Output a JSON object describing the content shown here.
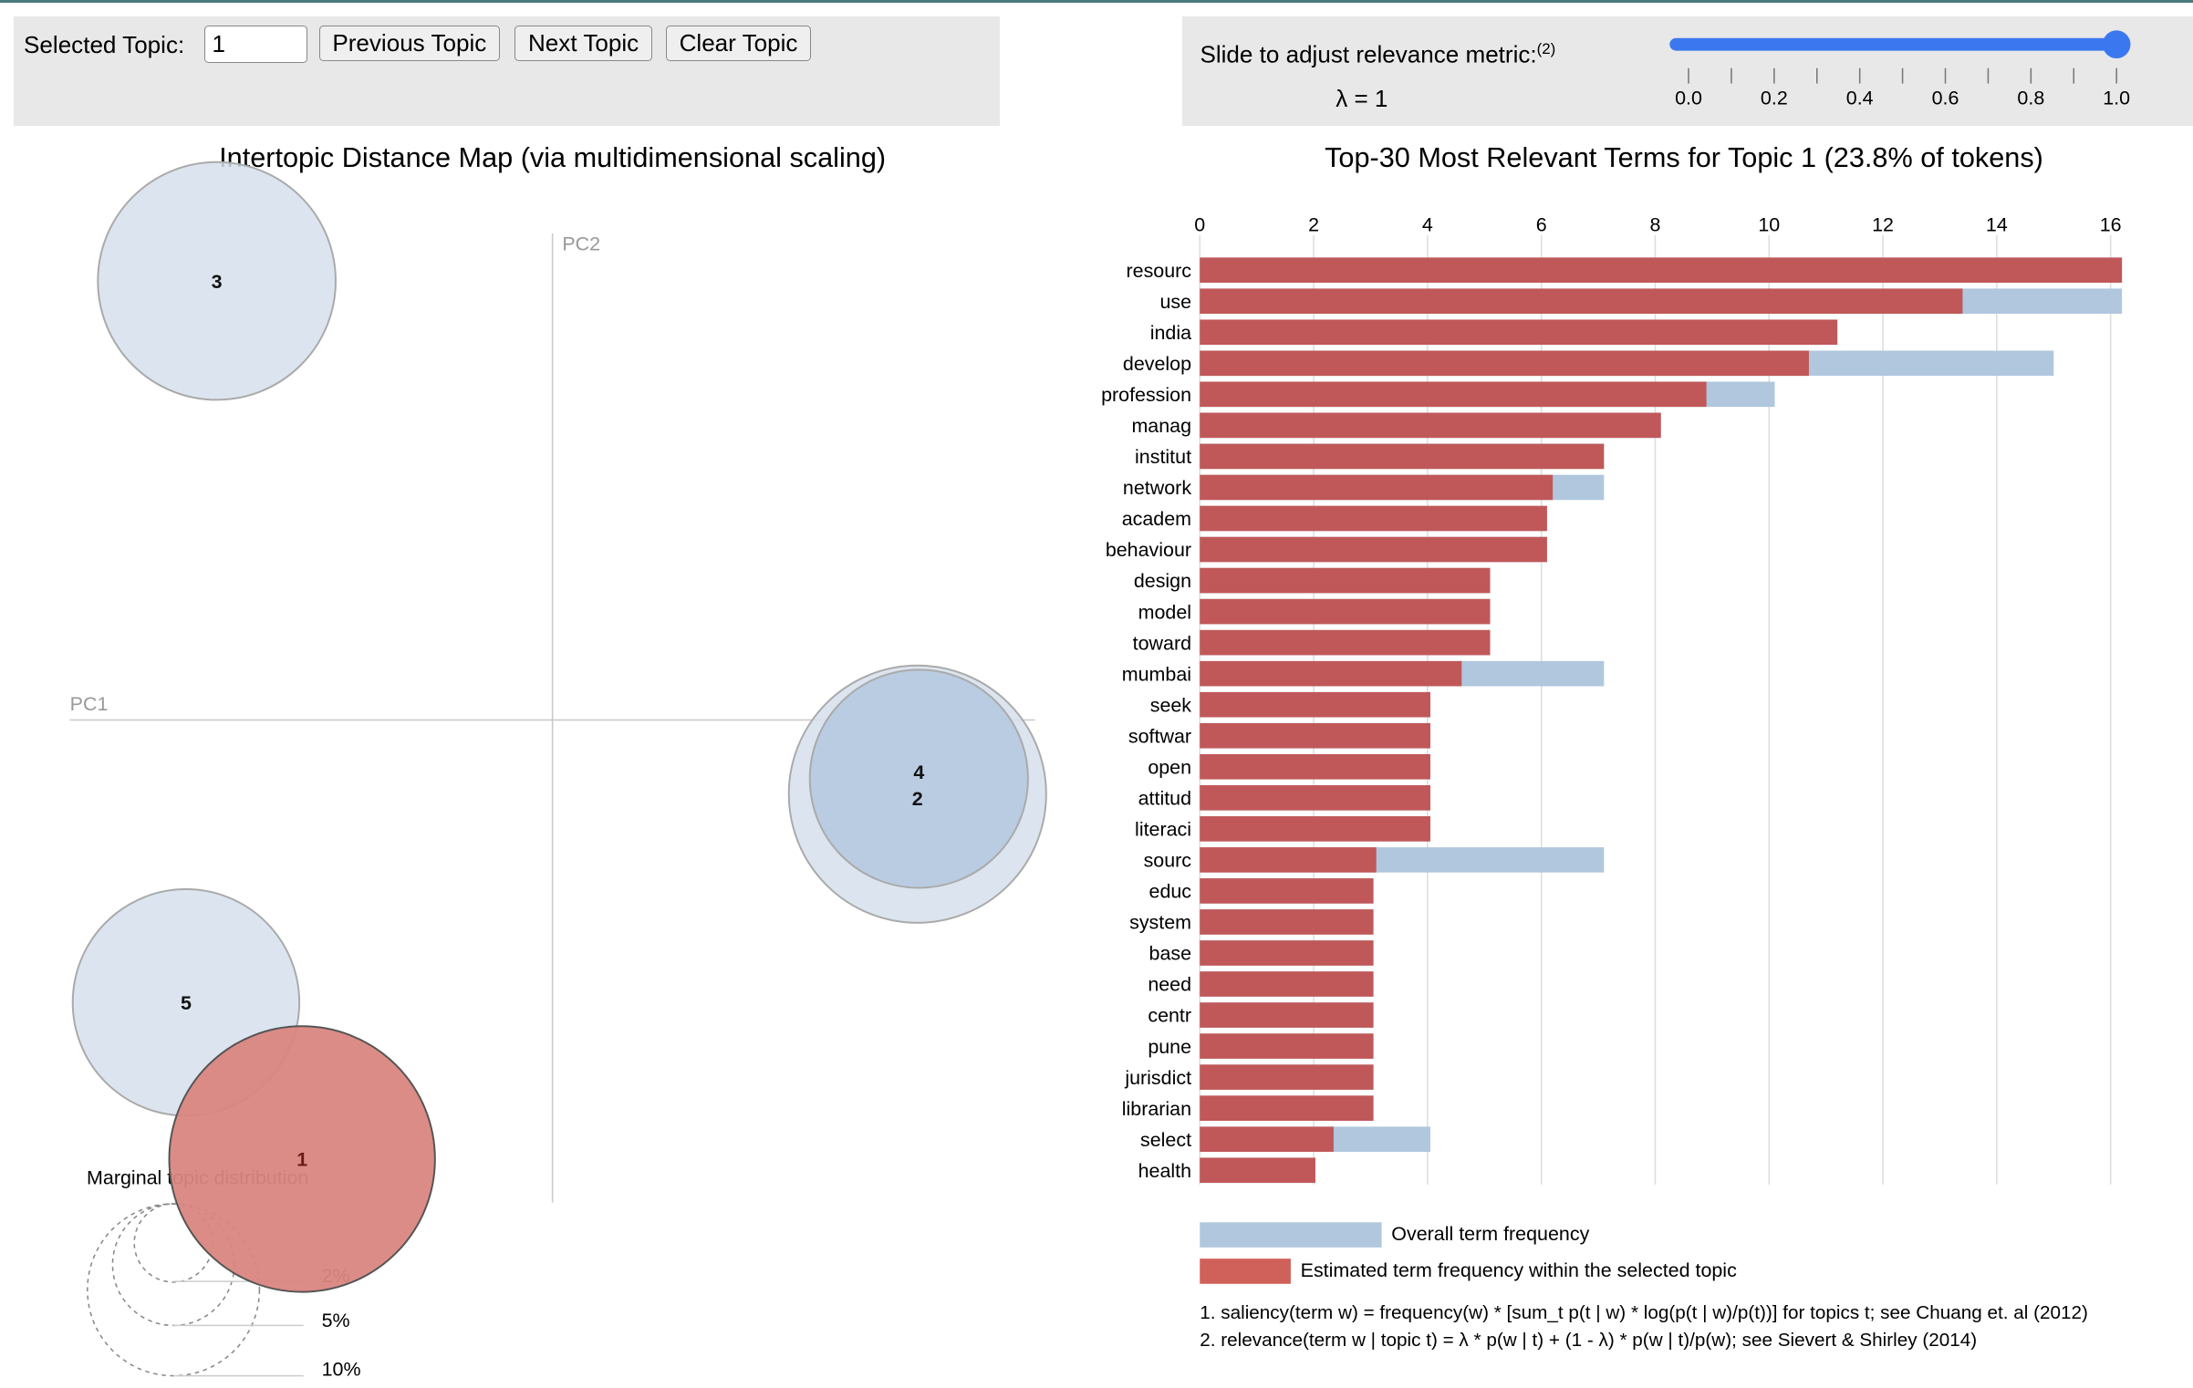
{
  "controls": {
    "selected_topic_label": "Selected Topic:",
    "selected_topic_value": "1",
    "previous_label": "Previous Topic",
    "next_label": "Next Topic",
    "clear_label": "Clear Topic"
  },
  "slider": {
    "label": "Slide to adjust relevance metric:",
    "footnote_ref": "(2)",
    "lambda_text": "λ = 1",
    "value": 1.0,
    "min": 0,
    "max": 1,
    "tick_labels": [
      "0.0",
      "0.2",
      "0.4",
      "0.6",
      "0.8",
      "1.0"
    ],
    "color": "#3b78f0"
  },
  "map": {
    "title": "Intertopic Distance Map (via multidimensional scaling)",
    "pc1_label": "PC1",
    "pc2_label": "PC2",
    "topics": [
      {
        "label": "3"
      },
      {
        "label": "2"
      },
      {
        "label": "4"
      },
      {
        "label": "5"
      },
      {
        "label": "1",
        "selected": true
      }
    ],
    "marginal": {
      "title": "Marginal topic distribution",
      "levels": [
        "2%",
        "5%",
        "10%"
      ]
    },
    "colors": {
      "topic": "#d6e0ec",
      "topic_hover": "#b3c8df",
      "selected": "#da8680"
    }
  },
  "chart_data": {
    "type": "bar",
    "orientation": "horizontal",
    "title": "Top-30 Most Relevant Terms for Topic 1 (23.8% of tokens)",
    "xlim": [
      0,
      16.5
    ],
    "xticks": [
      0,
      2,
      4,
      6,
      8,
      10,
      12,
      14,
      16
    ],
    "grid": true,
    "legend_placement": "bottom",
    "categories": [
      "resourc",
      "use",
      "india",
      "develop",
      "profession",
      "manag",
      "institut",
      "network",
      "academ",
      "behaviour",
      "design",
      "model",
      "toward",
      "mumbai",
      "seek",
      "softwar",
      "open",
      "attitud",
      "literaci",
      "sourc",
      "educ",
      "system",
      "base",
      "need",
      "centr",
      "pune",
      "jurisdict",
      "librarian",
      "select",
      "health"
    ],
    "series": [
      {
        "name": "Overall term frequency",
        "color": "#b0c7de",
        "values": [
          16.2,
          16.2,
          11.2,
          15.0,
          10.1,
          8.1,
          7.1,
          7.1,
          6.1,
          6.1,
          5.1,
          5.1,
          5.1,
          7.1,
          4.05,
          4.05,
          4.05,
          4.05,
          4.05,
          7.1,
          3.05,
          3.05,
          3.05,
          3.05,
          3.05,
          3.05,
          3.05,
          3.05,
          4.05,
          2.03
        ]
      },
      {
        "name": "Estimated term frequency within the selected topic",
        "color": "#c05656",
        "values": [
          16.2,
          13.4,
          11.2,
          10.7,
          8.9,
          8.1,
          7.1,
          6.2,
          6.1,
          6.1,
          5.1,
          5.1,
          5.1,
          4.6,
          4.05,
          4.05,
          4.05,
          4.05,
          4.05,
          3.1,
          3.05,
          3.05,
          3.05,
          3.05,
          3.05,
          3.05,
          3.05,
          3.05,
          2.35,
          2.03
        ]
      }
    ],
    "footnotes": [
      "1. saliency(term w) = frequency(w) * [sum_t p(t | w) * log(p(t | w)/p(t))] for topics t; see Chuang et. al (2012)",
      "2. relevance(term w | topic t) = λ * p(w | t) + (1 - λ) * p(w | t)/p(w); see Sievert & Shirley (2014)"
    ]
  }
}
